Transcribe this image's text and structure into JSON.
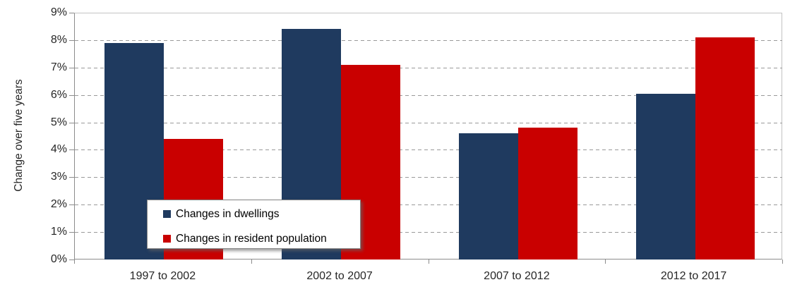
{
  "chart_data": {
    "type": "bar",
    "categories": [
      "1997 to 2002",
      "2002 to 2007",
      "2007 to 2012",
      "2012 to 2017"
    ],
    "series": [
      {
        "name": "Changes in dwellings",
        "color": "#1f3a5f",
        "values": [
          7.9,
          8.4,
          4.6,
          6.05
        ]
      },
      {
        "name": "Changes in resident population",
        "color": "#c90000",
        "values": [
          4.4,
          7.1,
          4.8,
          8.1
        ]
      }
    ],
    "title": "",
    "xlabel": "",
    "ylabel": "Change over five years",
    "ylim": [
      0,
      9
    ],
    "ytick_step": 1,
    "ytick_format": "percent",
    "grid": "dashed horizontal",
    "legend_position": "inside bottom-left"
  },
  "colors": {
    "axis": "#8c8c8c",
    "plot_border": "#c3c3c3",
    "gridline": "#999999",
    "text": "#262626"
  }
}
